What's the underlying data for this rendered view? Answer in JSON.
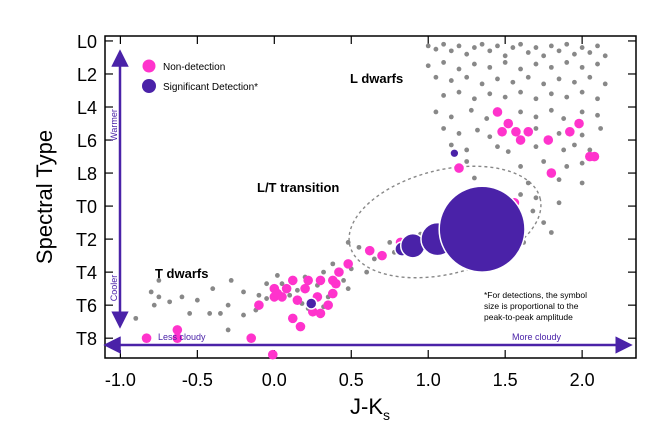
{
  "colors": {
    "nondetection": "#ff33cc",
    "detection": "#4a22a8",
    "background_dots": "#888888",
    "arrow": "#4a22a8"
  },
  "chart_data": {
    "type": "scatter",
    "xlabel": "J-K",
    "xlabel_sub": "s",
    "ylabel": "Spectral Type",
    "xlim": [
      -1.1,
      2.35
    ],
    "ylim": [
      -0.3,
      19.2
    ],
    "x_ticks": [
      {
        "value": -1.0,
        "label": "-1.0"
      },
      {
        "value": -0.5,
        "label": "-0.5"
      },
      {
        "value": 0.0,
        "label": "0.0"
      },
      {
        "value": 0.5,
        "label": "0.5"
      },
      {
        "value": 1.0,
        "label": "1.0"
      },
      {
        "value": 1.5,
        "label": "1.5"
      },
      {
        "value": 2.0,
        "label": "2.0"
      }
    ],
    "y_ticks": [
      {
        "value": 0,
        "label": "L0"
      },
      {
        "value": 2,
        "label": "L2"
      },
      {
        "value": 4,
        "label": "L4"
      },
      {
        "value": 6,
        "label": "L6"
      },
      {
        "value": 8,
        "label": "L8"
      },
      {
        "value": 10,
        "label": "T0"
      },
      {
        "value": 12,
        "label": "T2"
      },
      {
        "value": 14,
        "label": "T4"
      },
      {
        "value": 16,
        "label": "T6"
      },
      {
        "value": 18,
        "label": "T8"
      }
    ],
    "legend": [
      {
        "label": "Non-detection",
        "series": "nondetection"
      },
      {
        "label": "Significant Detection*",
        "series": "detection"
      }
    ],
    "annotations": {
      "l_dwarfs": "L dwarfs",
      "t_dwarfs": "T dwarfs",
      "lt_transition": "L/T transition",
      "warmer": "Warmer",
      "cooler": "Cooler",
      "less_cloudy": "Less cloudy",
      "more_cloudy": "More cloudy",
      "note_lines": [
        "*For detections, the symbol",
        "size is proportional to the",
        "peak-to-peak amplitude"
      ]
    },
    "series": [
      {
        "name": "nondetection",
        "points": [
          [
            -0.83,
            18.0
          ],
          [
            -0.63,
            17.5
          ],
          [
            -0.63,
            18.0
          ],
          [
            -0.15,
            18.0
          ],
          [
            -0.01,
            19.0
          ],
          [
            -0.1,
            16.0
          ],
          [
            0.0,
            15.0
          ],
          [
            0.0,
            15.5
          ],
          [
            0.02,
            15.3
          ],
          [
            0.08,
            15.0
          ],
          [
            0.05,
            15.5
          ],
          [
            0.12,
            14.5
          ],
          [
            0.15,
            15.7
          ],
          [
            0.2,
            15.0
          ],
          [
            0.22,
            14.5
          ],
          [
            0.28,
            15.5
          ],
          [
            0.3,
            14.5
          ],
          [
            0.25,
            16.4
          ],
          [
            0.3,
            16.5
          ],
          [
            0.17,
            17.3
          ],
          [
            0.12,
            16.8
          ],
          [
            0.35,
            16.0
          ],
          [
            0.38,
            14.5
          ],
          [
            0.4,
            14.7
          ],
          [
            0.38,
            15.3
          ],
          [
            0.42,
            14.0
          ],
          [
            0.48,
            13.5
          ],
          [
            0.62,
            12.7
          ],
          [
            0.7,
            13.0
          ],
          [
            0.82,
            12.2
          ],
          [
            0.85,
            12.5
          ],
          [
            1.22,
            11.5
          ],
          [
            1.2,
            7.7
          ],
          [
            1.45,
            4.3
          ],
          [
            1.48,
            5.5
          ],
          [
            1.52,
            5.0
          ],
          [
            1.57,
            5.5
          ],
          [
            1.6,
            6.0
          ],
          [
            1.65,
            5.5
          ],
          [
            1.78,
            6.0
          ],
          [
            1.8,
            8.0
          ],
          [
            1.92,
            5.5
          ],
          [
            1.98,
            5.0
          ],
          [
            2.05,
            7.0
          ],
          [
            2.08,
            7.0
          ],
          [
            1.56,
            9.8
          ],
          [
            1.0,
            12.0
          ],
          [
            1.08,
            12.0
          ],
          [
            0.94,
            12.4
          ]
        ]
      },
      {
        "name": "detection",
        "points": [
          [
            0.24,
            15.9,
            1.0
          ],
          [
            0.83,
            12.6,
            1.3
          ],
          [
            1.17,
            6.8,
            0.8
          ],
          [
            0.9,
            12.4,
            2.2
          ],
          [
            1.06,
            12.0,
            3.0
          ],
          [
            1.35,
            11.4,
            7.8
          ]
        ]
      }
    ],
    "gray_points": [
      [
        1.0,
        0.3
      ],
      [
        1.05,
        0.5
      ],
      [
        1.1,
        0.2
      ],
      [
        1.15,
        0.6
      ],
      [
        1.2,
        0.3
      ],
      [
        1.25,
        0.8
      ],
      [
        1.3,
        0.4
      ],
      [
        1.35,
        0.2
      ],
      [
        1.4,
        0.6
      ],
      [
        1.45,
        0.3
      ],
      [
        1.5,
        0.9
      ],
      [
        1.55,
        0.4
      ],
      [
        1.6,
        0.2
      ],
      [
        1.65,
        0.7
      ],
      [
        1.7,
        0.4
      ],
      [
        1.75,
        0.9
      ],
      [
        1.8,
        0.3
      ],
      [
        1.85,
        0.6
      ],
      [
        1.9,
        0.2
      ],
      [
        1.95,
        0.8
      ],
      [
        2.0,
        0.4
      ],
      [
        2.05,
        0.7
      ],
      [
        2.1,
        0.3
      ],
      [
        2.15,
        0.9
      ],
      [
        1.0,
        1.5
      ],
      [
        1.1,
        1.3
      ],
      [
        1.2,
        1.7
      ],
      [
        1.3,
        1.4
      ],
      [
        1.4,
        1.6
      ],
      [
        1.5,
        1.3
      ],
      [
        1.6,
        1.7
      ],
      [
        1.7,
        1.4
      ],
      [
        1.8,
        1.6
      ],
      [
        1.9,
        1.3
      ],
      [
        2.0,
        1.6
      ],
      [
        2.1,
        1.4
      ],
      [
        1.05,
        2.2
      ],
      [
        1.15,
        2.4
      ],
      [
        1.25,
        2.2
      ],
      [
        1.35,
        2.6
      ],
      [
        1.45,
        2.3
      ],
      [
        1.55,
        2.5
      ],
      [
        1.65,
        2.2
      ],
      [
        1.75,
        2.6
      ],
      [
        1.85,
        2.3
      ],
      [
        1.95,
        2.5
      ],
      [
        2.05,
        2.2
      ],
      [
        2.15,
        2.6
      ],
      [
        1.1,
        3.3
      ],
      [
        1.2,
        3.1
      ],
      [
        1.3,
        3.5
      ],
      [
        1.4,
        3.2
      ],
      [
        1.5,
        3.4
      ],
      [
        1.6,
        3.1
      ],
      [
        1.7,
        3.5
      ],
      [
        1.8,
        3.2
      ],
      [
        1.9,
        3.4
      ],
      [
        2.0,
        3.1
      ],
      [
        2.1,
        3.5
      ],
      [
        1.05,
        4.3
      ],
      [
        1.15,
        4.6
      ],
      [
        1.28,
        4.2
      ],
      [
        1.38,
        4.7
      ],
      [
        1.6,
        4.3
      ],
      [
        1.7,
        4.6
      ],
      [
        1.8,
        4.2
      ],
      [
        1.88,
        4.7
      ],
      [
        2.0,
        4.3
      ],
      [
        2.1,
        4.5
      ],
      [
        1.1,
        5.3
      ],
      [
        1.2,
        5.6
      ],
      [
        1.32,
        5.4
      ],
      [
        1.4,
        5.8
      ],
      [
        1.7,
        5.3
      ],
      [
        1.85,
        5.6
      ],
      [
        2.0,
        5.7
      ],
      [
        2.12,
        5.3
      ],
      [
        1.15,
        6.3
      ],
      [
        1.25,
        6.6
      ],
      [
        1.45,
        6.4
      ],
      [
        1.52,
        6.7
      ],
      [
        1.7,
        6.4
      ],
      [
        1.88,
        6.6
      ],
      [
        1.95,
        6.3
      ],
      [
        2.05,
        6.6
      ],
      [
        1.25,
        7.3
      ],
      [
        1.6,
        7.6
      ],
      [
        1.75,
        7.3
      ],
      [
        1.9,
        7.6
      ],
      [
        2.0,
        7.4
      ],
      [
        1.3,
        8.3
      ],
      [
        1.65,
        8.6
      ],
      [
        1.85,
        8.4
      ],
      [
        2.0,
        8.6
      ],
      [
        1.6,
        9.3
      ],
      [
        1.7,
        9.5
      ],
      [
        1.45,
        9.6
      ],
      [
        1.85,
        9.8
      ],
      [
        1.2,
        9.8
      ],
      [
        1.45,
        10.4
      ],
      [
        1.6,
        10.7
      ],
      [
        1.68,
        10.3
      ],
      [
        1.75,
        11.0
      ],
      [
        1.58,
        11.4
      ],
      [
        1.8,
        11.6
      ],
      [
        1.62,
        12.2
      ],
      [
        1.2,
        10.6
      ],
      [
        0.55,
        12.5
      ],
      [
        0.65,
        13.2
      ],
      [
        0.75,
        12.2
      ],
      [
        0.78,
        12.8
      ],
      [
        0.95,
        11.7
      ],
      [
        0.5,
        13.8
      ],
      [
        0.38,
        13.5
      ],
      [
        0.32,
        14.0
      ],
      [
        0.28,
        14.8
      ],
      [
        0.2,
        14.3
      ],
      [
        0.15,
        15.1
      ],
      [
        0.1,
        15.4
      ],
      [
        0.05,
        14.7
      ],
      [
        0.02,
        14.2
      ],
      [
        -0.05,
        14.7
      ],
      [
        -0.05,
        15.6
      ],
      [
        -0.1,
        15.4
      ],
      [
        -0.12,
        16.3
      ],
      [
        -0.2,
        16.6
      ],
      [
        -0.3,
        17.5
      ],
      [
        -0.28,
        14.5
      ],
      [
        -0.4,
        15.0
      ],
      [
        -0.5,
        15.7
      ],
      [
        -0.55,
        16.5
      ],
      [
        -0.6,
        15.5
      ],
      [
        -0.68,
        15.8
      ],
      [
        -0.75,
        15.5
      ],
      [
        -0.78,
        16.0
      ],
      [
        -0.8,
        15.2
      ],
      [
        -0.9,
        16.8
      ],
      [
        -0.35,
        16.5
      ],
      [
        -0.3,
        16.0
      ],
      [
        -0.42,
        16.5
      ],
      [
        -0.2,
        15.2
      ],
      [
        0.18,
        15.9
      ],
      [
        0.22,
        16.2
      ],
      [
        0.32,
        16.1
      ],
      [
        0.35,
        15.5
      ],
      [
        0.45,
        14.5
      ],
      [
        0.48,
        15.0
      ],
      [
        -0.75,
        14.5
      ],
      [
        0.6,
        14.0
      ],
      [
        0.48,
        12.2
      ]
    ]
  }
}
